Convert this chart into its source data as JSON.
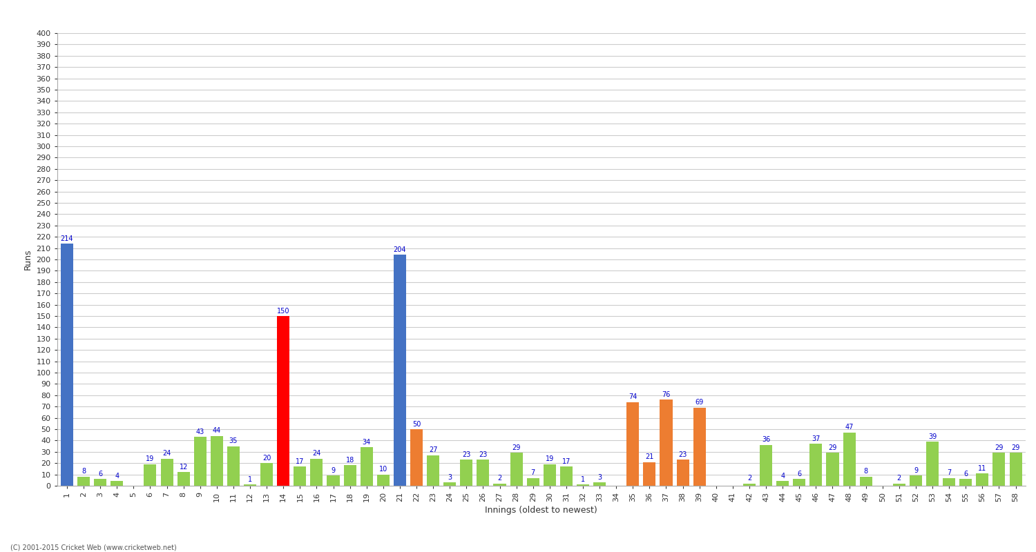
{
  "innings": [
    1,
    2,
    3,
    4,
    5,
    6,
    7,
    8,
    9,
    10,
    11,
    12,
    13,
    14,
    15,
    16,
    17,
    18,
    19,
    20,
    21,
    22,
    23,
    24,
    25,
    26,
    27,
    28,
    29,
    30,
    31,
    32,
    33,
    34,
    35,
    36,
    37,
    38,
    39,
    40,
    41,
    42,
    43,
    44,
    45,
    46,
    47,
    48,
    49,
    50,
    51,
    52,
    53,
    54,
    55,
    56,
    57,
    58
  ],
  "scores": [
    214,
    8,
    6,
    4,
    0,
    19,
    24,
    12,
    43,
    44,
    35,
    1,
    20,
    150,
    17,
    24,
    9,
    18,
    34,
    10,
    204,
    50,
    27,
    3,
    23,
    23,
    2,
    29,
    7,
    19,
    17,
    1,
    3,
    0,
    74,
    21,
    76,
    23,
    69,
    0,
    0,
    2,
    36,
    4,
    6,
    37,
    29,
    47,
    8,
    0,
    2,
    9,
    39,
    7,
    6,
    11,
    29,
    29
  ],
  "colors": [
    "#4472c4",
    "#92d050",
    "#92d050",
    "#92d050",
    "#92d050",
    "#92d050",
    "#92d050",
    "#92d050",
    "#92d050",
    "#92d050",
    "#92d050",
    "#92d050",
    "#92d050",
    "#ff0000",
    "#92d050",
    "#92d050",
    "#92d050",
    "#92d050",
    "#92d050",
    "#92d050",
    "#4472c4",
    "#ed7d31",
    "#92d050",
    "#92d050",
    "#92d050",
    "#92d050",
    "#92d050",
    "#92d050",
    "#92d050",
    "#92d050",
    "#92d050",
    "#92d050",
    "#92d050",
    "#92d050",
    "#ed7d31",
    "#ed7d31",
    "#ed7d31",
    "#ed7d31",
    "#ed7d31",
    "#92d050",
    "#92d050",
    "#92d050",
    "#92d050",
    "#92d050",
    "#92d050",
    "#92d050",
    "#92d050",
    "#92d050",
    "#92d050",
    "#92d050",
    "#92d050",
    "#92d050",
    "#92d050",
    "#92d050",
    "#92d050",
    "#92d050",
    "#92d050",
    "#92d050"
  ],
  "xlabel": "Innings (oldest to newest)",
  "ylabel": "Runs",
  "ylim": [
    0,
    400
  ],
  "yticks": [
    0,
    10,
    20,
    30,
    40,
    50,
    60,
    70,
    80,
    90,
    100,
    110,
    120,
    130,
    140,
    150,
    160,
    170,
    180,
    190,
    200,
    210,
    220,
    230,
    240,
    250,
    260,
    270,
    280,
    290,
    300,
    310,
    320,
    330,
    340,
    350,
    360,
    370,
    380,
    390,
    400
  ],
  "background_color": "#ffffff",
  "grid_color": "#cccccc",
  "label_color": "#0000cc",
  "label_fontsize": 7,
  "axis_label_fontsize": 9,
  "tick_fontsize": 8,
  "footer": "(C) 2001-2015 Cricket Web (www.cricketweb.net)"
}
